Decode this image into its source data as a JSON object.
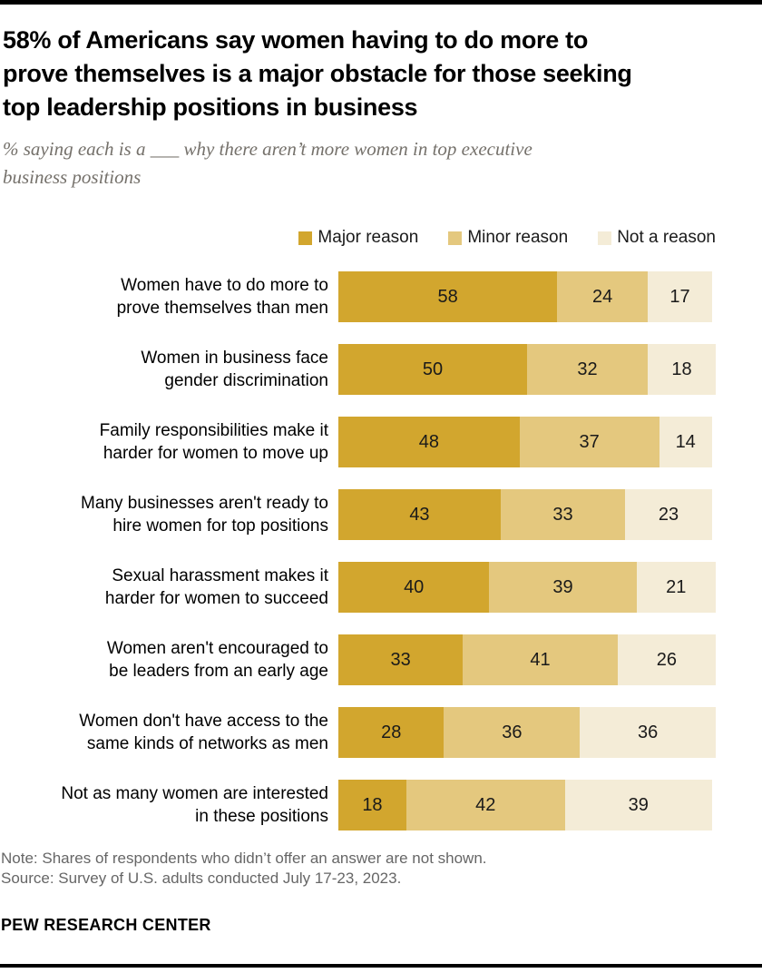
{
  "header": {
    "title_lines": [
      "58% of Americans say women having to do more to",
      "prove themselves is a major obstacle for those seeking",
      "top leadership positions in business"
    ],
    "subtitle_lines": [
      "% saying each is a ___ why there aren’t more women in top executive",
      "business positions"
    ]
  },
  "chart_data": {
    "type": "bar",
    "orientation": "horizontal-stacked",
    "title": "58% of Americans say women having to do more to prove themselves is a major obstacle for those seeking top leadership positions in business",
    "subtitle": "% saying each is a ___ why there aren’t more women in top executive business positions",
    "xlim": [
      0,
      100
    ],
    "grid": false,
    "legend_position": "top-right",
    "value_labels_shown": true,
    "categories": [
      "Women have to do more to prove themselves than men",
      "Women in business face gender discrimination",
      "Family responsibilities make it harder for women to move up",
      "Many businesses aren't ready to hire women for top positions",
      "Sexual harassment makes it harder for women to succeed",
      "Women aren't encouraged to be leaders from an early age",
      "Women don't have access to the same kinds of networks as men",
      "Not as many women are interested in these positions"
    ],
    "category_lines": [
      [
        "Women have to do more to",
        "prove themselves than men"
      ],
      [
        "Women in business face",
        "gender discrimination"
      ],
      [
        "Family responsibilities make it",
        "harder for women to move up"
      ],
      [
        "Many businesses aren't ready to",
        "hire women for top positions"
      ],
      [
        "Sexual harassment makes it",
        "harder for women to succeed"
      ],
      [
        "Women aren't encouraged to",
        "be leaders from an early age"
      ],
      [
        "Women don't have access to the",
        "same kinds of networks as men"
      ],
      [
        "Not as many women are interested",
        "in these positions"
      ]
    ],
    "series": [
      {
        "name": "Major reason",
        "color": "#D2A62E",
        "values": [
          58,
          50,
          48,
          43,
          40,
          33,
          28,
          18
        ]
      },
      {
        "name": "Minor reason",
        "color": "#E4C87E",
        "values": [
          24,
          32,
          37,
          33,
          39,
          41,
          36,
          42
        ]
      },
      {
        "name": "Not a reason",
        "color": "#F4ECD7",
        "values": [
          17,
          18,
          14,
          23,
          21,
          26,
          36,
          39
        ]
      }
    ]
  },
  "footer": {
    "note": "Note: Shares of respondents who didn’t offer an answer are not shown.",
    "source": "Source: Survey of U.S. adults conducted July 17-23, 2023.",
    "brand": "PEW RESEARCH CENTER"
  },
  "colors": {
    "major_reason": "#D2A62E",
    "minor_reason": "#E4C87E",
    "not_a_reason": "#F4ECD7",
    "title_text": "#000000",
    "subtitle_text": "#75716B",
    "note_text": "#666666",
    "rule": "#000000"
  }
}
